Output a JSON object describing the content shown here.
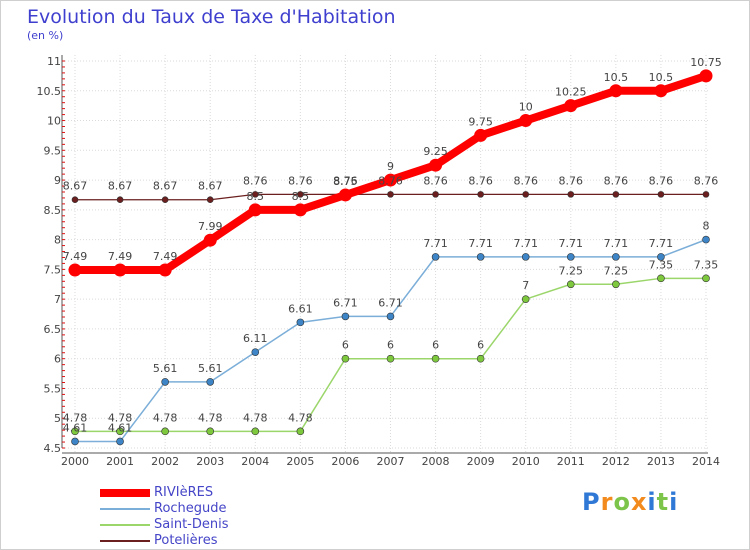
{
  "title": "Evolution du Taux de Taxe d'Habitation",
  "units": "(en %)",
  "logo": {
    "text": "Proxiti",
    "letter_colors": [
      "#2f78d6",
      "#f28a1e",
      "#7cc44a",
      "#f28a1e",
      "#2f78d6",
      "#7cc44a",
      "#2f78d6"
    ]
  },
  "chart_data": {
    "type": "line",
    "x": [
      "2000",
      "2001",
      "2002",
      "2003",
      "2004",
      "2005",
      "2006",
      "2007",
      "2008",
      "2009",
      "2010",
      "2011",
      "2012",
      "2013",
      "2014"
    ],
    "ylim": [
      4.5,
      11
    ],
    "y_ticks": [
      "4.5",
      "5",
      "5.5",
      "6",
      "6.5",
      "7",
      "7.5",
      "8",
      "8.5",
      "9",
      "9.5",
      "10",
      "10.5",
      "11"
    ],
    "grid": true,
    "legend_position": "bottom-left",
    "series": [
      {
        "name": "Potelières",
        "color": "#6b1f1f",
        "line_width": 1.2,
        "point_size": 3,
        "values": [
          8.67,
          8.67,
          8.67,
          8.67,
          8.76,
          8.76,
          8.76,
          8.76,
          8.76,
          8.76,
          8.76,
          8.76,
          8.76,
          8.76,
          8.76
        ],
        "labels": [
          "8.67",
          "8.67",
          "8.67",
          "8.67",
          "8.76",
          "8.76",
          "8.76",
          "8.76",
          "8.76",
          "8.76",
          "8.76",
          "8.76",
          "8.76",
          "8.76",
          "8.76"
        ]
      },
      {
        "name": "Saint-Denis",
        "color": "#9bd66b",
        "point_color": "#7ec83e",
        "line_width": 1.5,
        "point_size": 3.5,
        "values": [
          4.78,
          4.78,
          4.78,
          4.78,
          4.78,
          4.78,
          6,
          6,
          6,
          6,
          7,
          7.25,
          7.25,
          7.35,
          7.35
        ],
        "labels": [
          "4.78",
          "4.78",
          "4.78",
          "4.78",
          "4.78",
          "4.78",
          "6",
          "6",
          "6",
          "6",
          "7",
          "7.25",
          "7.25",
          "7.35",
          "7.35"
        ]
      },
      {
        "name": "Rochegude",
        "color": "#7baed8",
        "point_color": "#3d85c6",
        "line_width": 1.5,
        "point_size": 3.5,
        "values": [
          4.61,
          4.61,
          5.61,
          5.61,
          6.11,
          6.61,
          6.71,
          6.71,
          7.71,
          7.71,
          7.71,
          7.71,
          7.71,
          7.71,
          8
        ],
        "labels": [
          "4.61",
          "4.61",
          "5.61",
          "5.61",
          "6.11",
          "6.61",
          "6.71",
          "6.71",
          "7.71",
          "7.71",
          "7.71",
          "7.71",
          "7.71",
          "7.71",
          "8"
        ]
      },
      {
        "name": "RIVIèRES",
        "color": "#ff0000",
        "line_width": 8,
        "point_size": 6.5,
        "values": [
          7.49,
          7.49,
          7.49,
          7.99,
          8.5,
          8.5,
          8.75,
          9,
          9.25,
          9.75,
          10,
          10.25,
          10.5,
          10.5,
          10.75
        ],
        "labels": [
          "7.49",
          "7.49",
          "7.49",
          "7.99",
          "8.5",
          "8.5",
          "8.75",
          "9",
          "9.25",
          "9.75",
          "10",
          "10.25",
          "10.5",
          "10.5",
          "10.75"
        ]
      }
    ],
    "legend_order": [
      3,
      2,
      1,
      0
    ]
  }
}
